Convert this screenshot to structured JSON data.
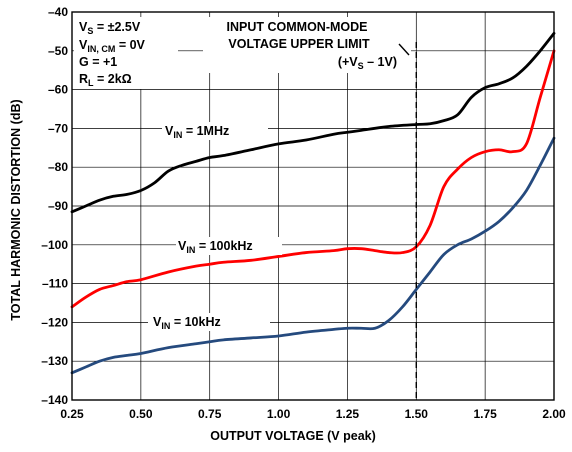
{
  "chart_data": {
    "type": "line",
    "xlabel": "OUTPUT VOLTAGE (V peak)",
    "ylabel": "TOTAL HARMONIC DISTORTION (dB)",
    "xlim": [
      0.25,
      2.0
    ],
    "ylim": [
      -140,
      -40
    ],
    "xticks": [
      "0.25",
      "0.50",
      "0.75",
      "1.00",
      "1.25",
      "1.50",
      "1.75",
      "2.00"
    ],
    "yticks": [
      "-40",
      "-50",
      "-60",
      "-70",
      "-80",
      "-90",
      "-100",
      "-110",
      "-120",
      "-130",
      "-140"
    ],
    "grid": true,
    "conditions": {
      "vs": {
        "main": "V",
        "sub": "S",
        "rest": " = ±2.5V"
      },
      "vin_cm": {
        "main": "V",
        "sub": "IN, CM",
        "rest": " = 0V"
      },
      "gain": "G = +1",
      "rl": {
        "main": "R",
        "sub": "L",
        "rest": " = 2kΩ"
      }
    },
    "limit_annotation": {
      "line1": "INPUT COMMON-MODE",
      "line2": "VOLTAGE UPPER LIMIT",
      "line3_pre": "(+V",
      "line3_sub": "S",
      "line3_post": " – 1V)",
      "x": 1.5
    },
    "series": [
      {
        "name": "1MHz",
        "label_main": "V",
        "label_sub": "IN",
        "label_rest": " = 1MHz",
        "color": "#000000",
        "x": [
          0.25,
          0.3,
          0.35,
          0.4,
          0.45,
          0.5,
          0.55,
          0.6,
          0.65,
          0.7,
          0.75,
          0.8,
          0.9,
          1.0,
          1.1,
          1.2,
          1.25,
          1.3,
          1.4,
          1.5,
          1.55,
          1.6,
          1.65,
          1.7,
          1.75,
          1.8,
          1.85,
          1.9,
          1.95,
          2.0
        ],
        "y": [
          -91.5,
          -90,
          -88.5,
          -87.5,
          -87,
          -86,
          -84,
          -81,
          -79.5,
          -78.5,
          -77.5,
          -77,
          -75.5,
          -74,
          -73,
          -71.5,
          -71,
          -70.5,
          -69.5,
          -69,
          -68.8,
          -68,
          -66.5,
          -62,
          -59.5,
          -58.5,
          -57,
          -54,
          -50,
          -45.5
        ]
      },
      {
        "name": "100kHz",
        "label_main": "V",
        "label_sub": "IN",
        "label_rest": " = 100kHz",
        "color": "#ff0000",
        "x": [
          0.25,
          0.3,
          0.35,
          0.4,
          0.45,
          0.5,
          0.6,
          0.7,
          0.75,
          0.8,
          0.9,
          1.0,
          1.1,
          1.2,
          1.25,
          1.3,
          1.35,
          1.4,
          1.45,
          1.5,
          1.55,
          1.6,
          1.65,
          1.7,
          1.75,
          1.8,
          1.85,
          1.9,
          1.95,
          2.0
        ],
        "y": [
          -116,
          -113.5,
          -111.5,
          -110.5,
          -109.5,
          -109,
          -107,
          -105.5,
          -105,
          -104.5,
          -104,
          -103,
          -102,
          -101.5,
          -101,
          -101,
          -101.5,
          -102,
          -102,
          -100.5,
          -95,
          -85,
          -80.5,
          -77.5,
          -76,
          -75.5,
          -76,
          -74,
          -62,
          -50
        ]
      },
      {
        "name": "10kHz",
        "label_main": "V",
        "label_sub": "IN",
        "label_rest": " = 10kHz",
        "color": "#254a7e",
        "x": [
          0.25,
          0.3,
          0.35,
          0.4,
          0.45,
          0.5,
          0.6,
          0.7,
          0.75,
          0.8,
          0.9,
          1.0,
          1.1,
          1.2,
          1.25,
          1.3,
          1.35,
          1.4,
          1.45,
          1.5,
          1.55,
          1.6,
          1.65,
          1.7,
          1.75,
          1.8,
          1.85,
          1.9,
          1.95,
          2.0
        ],
        "y": [
          -133,
          -131.5,
          -130,
          -129,
          -128.5,
          -128,
          -126.5,
          -125.5,
          -125,
          -124.5,
          -124,
          -123.5,
          -122.5,
          -121.8,
          -121.5,
          -121.5,
          -121.5,
          -119.5,
          -116,
          -111.5,
          -107,
          -102.5,
          -100,
          -98.5,
          -96.5,
          -94,
          -90.5,
          -86,
          -79.5,
          -72.5
        ]
      }
    ]
  }
}
